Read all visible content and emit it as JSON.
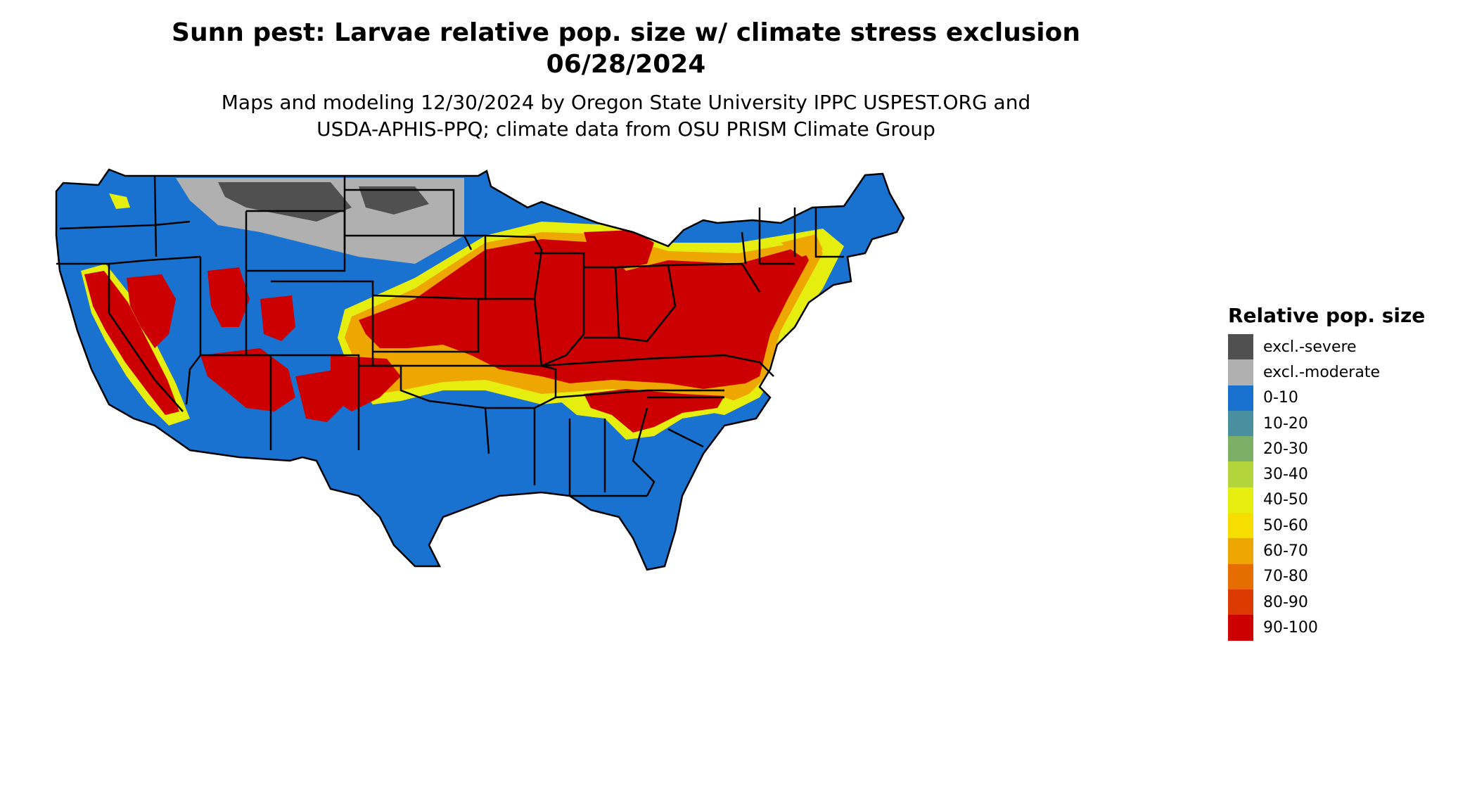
{
  "title_line1": "Sunn pest: Larvae relative pop. size w/ climate stress exclusion",
  "title_line2": "06/28/2024",
  "subtitle_line1": "Maps and modeling 12/30/2024 by Oregon State University IPPC USPEST.ORG and",
  "subtitle_line2": "USDA-APHIS-PPQ; climate data from OSU PRISM Climate Group",
  "legend": {
    "title": "Relative pop. size",
    "items": [
      {
        "label": "excl.-severe",
        "color": "#505050"
      },
      {
        "label": "excl.-moderate",
        "color": "#b0b0b0"
      },
      {
        "label": "0-10",
        "color": "#1a72d0"
      },
      {
        "label": "10-20",
        "color": "#4a8fa0"
      },
      {
        "label": "20-30",
        "color": "#7caf68"
      },
      {
        "label": "30-40",
        "color": "#b4d43c"
      },
      {
        "label": "40-50",
        "color": "#e6ee10"
      },
      {
        "label": "50-60",
        "color": "#f6de00"
      },
      {
        "label": "60-70",
        "color": "#eea600"
      },
      {
        "label": "70-80",
        "color": "#e66e00"
      },
      {
        "label": "80-90",
        "color": "#dc3a00"
      },
      {
        "label": "90-100",
        "color": "#cc0000"
      }
    ]
  }
}
